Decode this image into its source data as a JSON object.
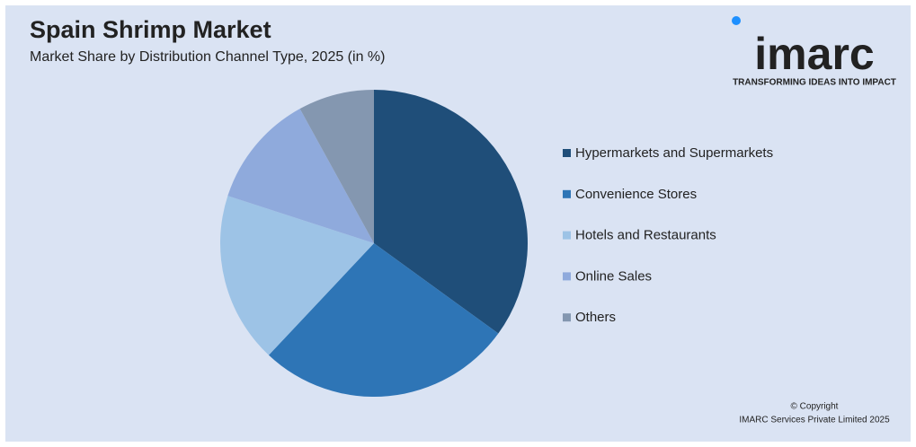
{
  "chart_data": {
    "type": "pie",
    "title": "Spain Shrimp Market",
    "subtitle": "Market Share by Distribution Channel Type, 2025 (in %)",
    "categories": [
      "Hypermarkets and Supermarkets",
      "Convenience Stores",
      "Hotels and Restaurants",
      "Online Sales",
      "Others"
    ],
    "values": [
      35,
      27,
      18,
      12,
      8
    ],
    "colors": [
      "#1f4e79",
      "#2e75b6",
      "#9dc3e6",
      "#8faadc",
      "#8497b0"
    ],
    "legend": "right"
  },
  "logo": {
    "name": "imarc",
    "tagline": "TRANSFORMING IDEAS INTO IMPACT"
  },
  "footer": {
    "copyright": "© Copyright",
    "company": "IMARC Services Private Limited 2025"
  }
}
